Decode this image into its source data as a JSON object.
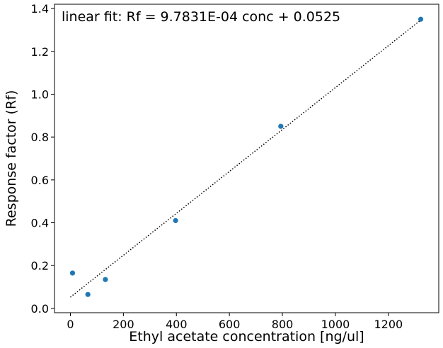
{
  "chart_data": {
    "type": "scatter",
    "title": "",
    "xlabel": "Ethyl acetate concentration [ng/ul]",
    "ylabel": "Response factor (Rf)",
    "annotation": "linear fit: Rf = 9.7831E-04 conc + 0.0525",
    "xlim": [
      -60,
      1390
    ],
    "ylim": [
      -0.02,
      1.42
    ],
    "x_ticks": [
      0,
      200,
      400,
      600,
      800,
      1000,
      1200
    ],
    "y_ticks": [
      0.0,
      0.2,
      0.4,
      0.6,
      0.8,
      1.0,
      1.2,
      1.4
    ],
    "x_tick_labels": [
      "0",
      "200",
      "400",
      "600",
      "800",
      "1000",
      "1200"
    ],
    "y_tick_labels": [
      "0.0",
      "0.2",
      "0.4",
      "0.6",
      "0.8",
      "1.0",
      "1.2",
      "1.4"
    ],
    "grid": false,
    "series": [
      {
        "kind": "points",
        "color": "#1f77b4",
        "x": [
          8,
          66,
          132,
          397,
          794,
          1322
        ],
        "y": [
          0.165,
          0.065,
          0.135,
          0.41,
          0.85,
          1.35
        ]
      },
      {
        "kind": "fit-line",
        "color": "#000000",
        "style": "dotted",
        "slope": 0.00097831,
        "intercept": 0.0525,
        "x_range": [
          0,
          1322
        ]
      }
    ]
  }
}
